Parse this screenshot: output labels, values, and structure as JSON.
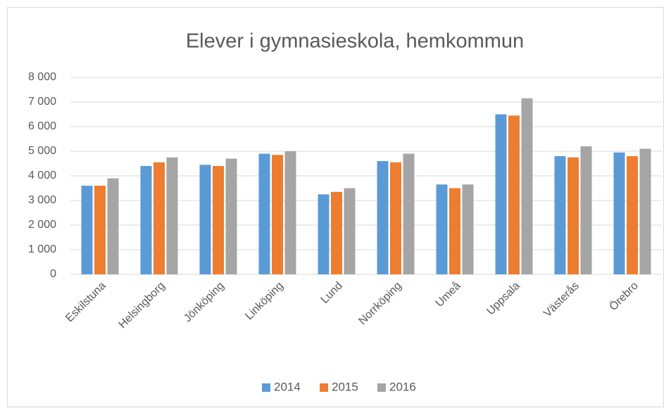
{
  "chart_data": {
    "type": "bar",
    "title": "Elever i gymnasieskola, hemkommun",
    "categories": [
      "Eskilstuna",
      "Helsingborg",
      "Jönköping",
      "Linköping",
      "Lund",
      "Norrköping",
      "Umeå",
      "Uppsala",
      "Västerås",
      "Örebro"
    ],
    "series": [
      {
        "name": "2014",
        "color": "#5b9bd5",
        "values": [
          3600,
          4400,
          4450,
          4900,
          3250,
          4600,
          3650,
          6500,
          4800,
          4950
        ]
      },
      {
        "name": "2015",
        "color": "#ed7d31",
        "values": [
          3600,
          4550,
          4400,
          4850,
          3350,
          4550,
          3500,
          6450,
          4750,
          4800
        ]
      },
      {
        "name": "2016",
        "color": "#a5a5a5",
        "values": [
          3900,
          4750,
          4700,
          5000,
          3500,
          4900,
          3650,
          7150,
          5200,
          5100
        ]
      }
    ],
    "ylim": [
      0,
      8000
    ],
    "yticks": [
      0,
      {
        "value": 1000,
        "label": "1 000"
      },
      {
        "value": 2000,
        "label": "2 000"
      },
      {
        "value": 3000,
        "label": "3 000"
      },
      {
        "value": 4000,
        "label": "4 000"
      },
      {
        "value": 5000,
        "label": "5 000"
      },
      {
        "value": 6000,
        "label": "6 000"
      },
      {
        "value": 7000,
        "label": "7 000"
      },
      {
        "value": 8000,
        "label": "8 000"
      }
    ],
    "grid": true,
    "legend": "bottom"
  }
}
